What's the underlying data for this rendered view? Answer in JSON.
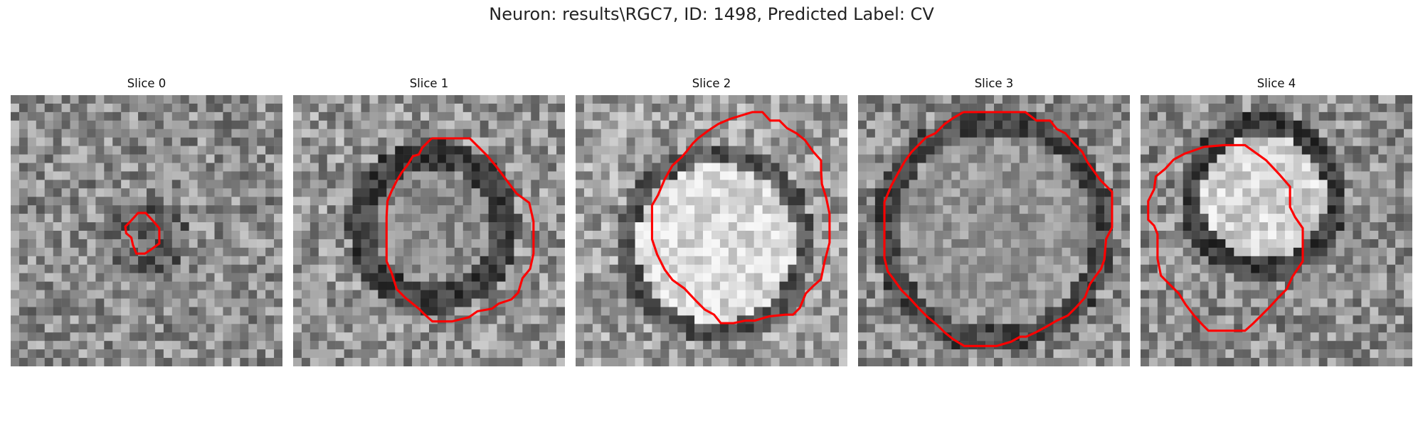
{
  "figure": {
    "title": "Neuron: results\\RGC7, ID: 1498, Predicted Label: CV"
  },
  "panels": [
    {
      "title": "Slice 0",
      "contour": "roi-small-blob"
    },
    {
      "title": "Slice 1",
      "contour": "roi-octagon"
    },
    {
      "title": "Slice 2",
      "contour": "roi-large-octagon"
    },
    {
      "title": "Slice 3",
      "contour": "roi-large-octagon"
    },
    {
      "title": "Slice 4",
      "contour": "roi-irregular-polygon"
    }
  ],
  "colors": {
    "contour": "#ff0000",
    "background": "#ffffff"
  }
}
